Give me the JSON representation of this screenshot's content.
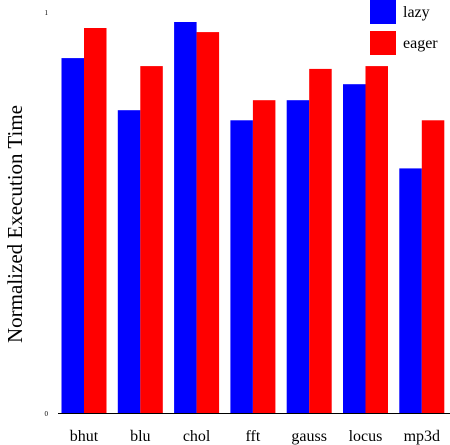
{
  "chart_data": {
    "type": "bar",
    "categories": [
      "bhut",
      "blu",
      "chol",
      "fft",
      "gauss",
      "locus",
      "mp3d"
    ],
    "series": [
      {
        "name": "lazy",
        "color": "#0000ff",
        "values": [
          0.885,
          0.755,
          0.975,
          0.73,
          0.78,
          0.82,
          0.61
        ]
      },
      {
        "name": "eager",
        "color": "#ff0000",
        "values": [
          0.96,
          0.865,
          0.95,
          0.78,
          0.858,
          0.865,
          0.73
        ]
      }
    ],
    "title": "",
    "xlabel": "",
    "ylabel": "Normalized Execution Time",
    "ylim": [
      0,
      1
    ],
    "yticks": [
      "0",
      "1"
    ],
    "legend": "top-right",
    "grid": false
  }
}
